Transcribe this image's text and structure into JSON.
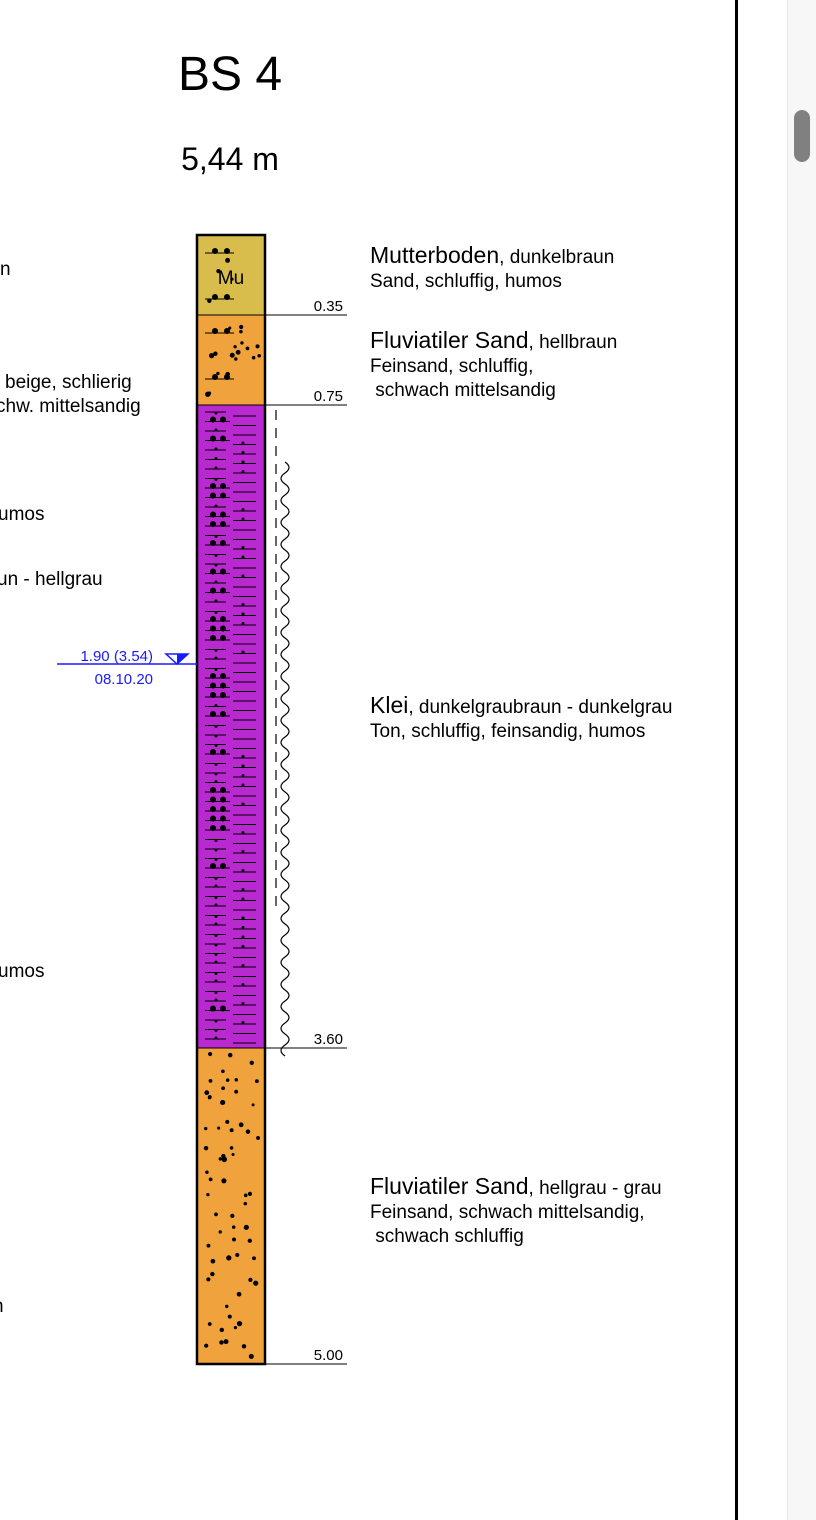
{
  "title": "BS 4",
  "subtitle": "5,44 m",
  "colors": {
    "mutterboden": "#d9bd4c",
    "sand": "#f0a23c",
    "klei": "#b829d0",
    "water": "#1a1aff"
  },
  "left_partial_text": [
    "n",
    "beige, schlierig",
    "chw. mittelsandig",
    "umos",
    "un - hellgrau",
    "umos",
    "n"
  ],
  "water_level": {
    "depth": "1.90 (3.54)",
    "date": "08.10.20",
    "level": 1.9
  },
  "layers": [
    {
      "top": 0,
      "bottom": 0.35,
      "depth_label": "0.35",
      "pattern": "mutterboden",
      "symbol": "Mu",
      "name": "Mutterboden",
      "color_desc": ", dunkelbraun",
      "lines": [
        "Sand, schluffig, humos"
      ]
    },
    {
      "top": 0.35,
      "bottom": 0.75,
      "depth_label": "0.75",
      "pattern": "sand",
      "name": "Fluviatiler Sand",
      "color_desc": ", hellbraun",
      "lines": [
        "Feinsand, schluffig,",
        " schwach mittelsandig"
      ]
    },
    {
      "top": 0.75,
      "bottom": 3.6,
      "depth_label": "3.60",
      "pattern": "klei",
      "name": "Klei",
      "color_desc": ", dunkelgraubraun - dunkelgrau",
      "lines": [
        "Ton, schluffig, feinsandig, humos"
      ]
    },
    {
      "top": 3.6,
      "bottom": 5.0,
      "depth_label": "5.00",
      "pattern": "sand",
      "name": "Fluviatiler Sand",
      "color_desc": ", hellgrau - grau",
      "lines": [
        "Feinsand, schwach mittelsandig,",
        " schwach schluffig"
      ]
    }
  ]
}
